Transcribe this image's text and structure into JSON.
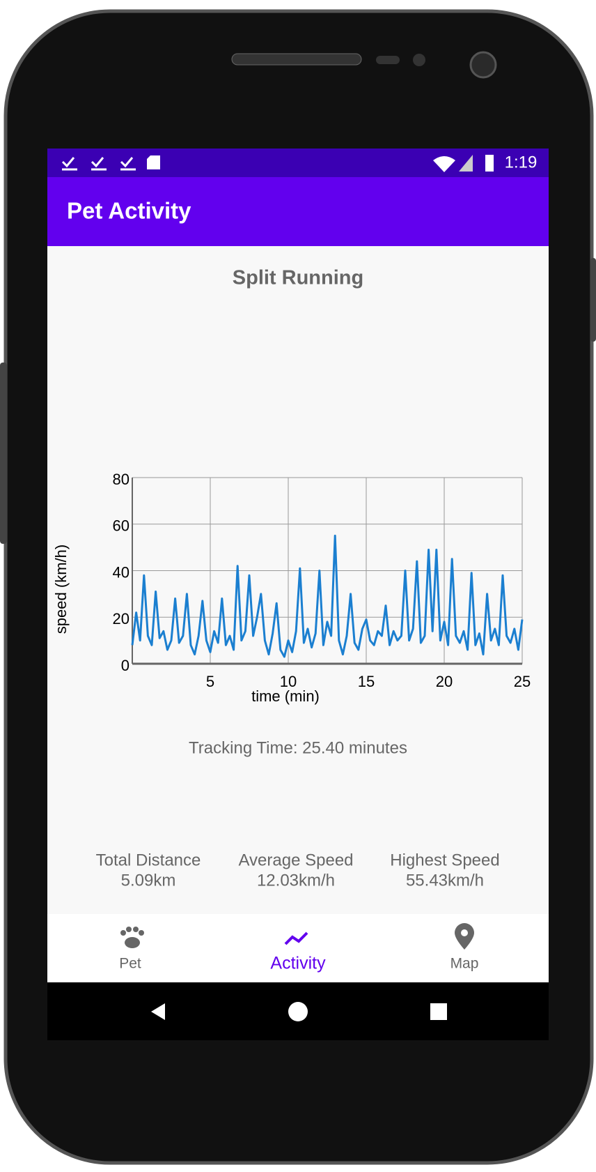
{
  "status_bar": {
    "time": "1:19"
  },
  "app_bar": {
    "title": "Pet Activity"
  },
  "chart_data": {
    "type": "line",
    "title": "Split Running",
    "x_label": "time (min)",
    "y_label": "speed (km/h)",
    "x": [
      0,
      0.25,
      0.5,
      0.75,
      1,
      1.25,
      1.5,
      1.75,
      2,
      2.25,
      2.5,
      2.75,
      3,
      3.25,
      3.5,
      3.75,
      4,
      4.25,
      4.5,
      4.75,
      5,
      5.25,
      5.5,
      5.75,
      6,
      6.25,
      6.5,
      6.75,
      7,
      7.25,
      7.5,
      7.75,
      8,
      8.25,
      8.5,
      8.75,
      9,
      9.25,
      9.5,
      9.75,
      10,
      10.25,
      10.5,
      10.75,
      11,
      11.25,
      11.5,
      11.75,
      12,
      12.25,
      12.5,
      12.75,
      13,
      13.25,
      13.5,
      13.75,
      14,
      14.25,
      14.5,
      14.75,
      15,
      15.25,
      15.5,
      15.75,
      16,
      16.25,
      16.5,
      16.75,
      17,
      17.25,
      17.5,
      17.75,
      18,
      18.25,
      18.5,
      18.75,
      19,
      19.25,
      19.5,
      19.75,
      20,
      20.25,
      20.5,
      20.75,
      21,
      21.25,
      21.5,
      21.75,
      22,
      22.25,
      22.5,
      22.75,
      23,
      23.25,
      23.5,
      23.75,
      24,
      24.25,
      24.5,
      24.75,
      25
    ],
    "values": [
      8,
      22,
      10,
      38,
      12,
      8,
      31,
      11,
      14,
      6,
      10,
      28,
      9,
      12,
      30,
      8,
      4,
      12,
      27,
      10,
      5,
      14,
      9,
      28,
      8,
      12,
      6,
      42,
      10,
      14,
      38,
      12,
      20,
      30,
      10,
      4,
      13,
      26,
      6,
      3,
      10,
      5,
      14,
      41,
      9,
      15,
      7,
      13,
      40,
      8,
      18,
      12,
      55,
      10,
      4,
      12,
      30,
      9,
      6,
      15,
      19,
      10,
      8,
      14,
      12,
      25,
      8,
      14,
      10,
      12,
      40,
      10,
      15,
      44,
      9,
      12,
      49,
      14,
      49,
      10,
      18,
      8,
      45,
      12,
      9,
      14,
      6,
      39,
      8,
      13,
      4,
      30,
      10,
      15,
      8,
      38,
      12,
      9,
      15,
      6,
      19
    ],
    "color": "#1b7fd0",
    "xlim": [
      0,
      25
    ],
    "ylim": [
      0,
      80
    ],
    "xticks": [
      5,
      10,
      15,
      20,
      25
    ],
    "yticks": [
      0,
      20,
      40,
      60,
      80
    ],
    "grid": true
  },
  "tracking": "Tracking Time: 25.40 minutes",
  "stats": [
    {
      "label": "Total Distance",
      "value": "5.09km"
    },
    {
      "label": "Average Speed",
      "value": "12.03km/h"
    },
    {
      "label": "Highest Speed",
      "value": "55.43km/h"
    }
  ],
  "nav": [
    "Pet",
    "Activity",
    "Map"
  ]
}
